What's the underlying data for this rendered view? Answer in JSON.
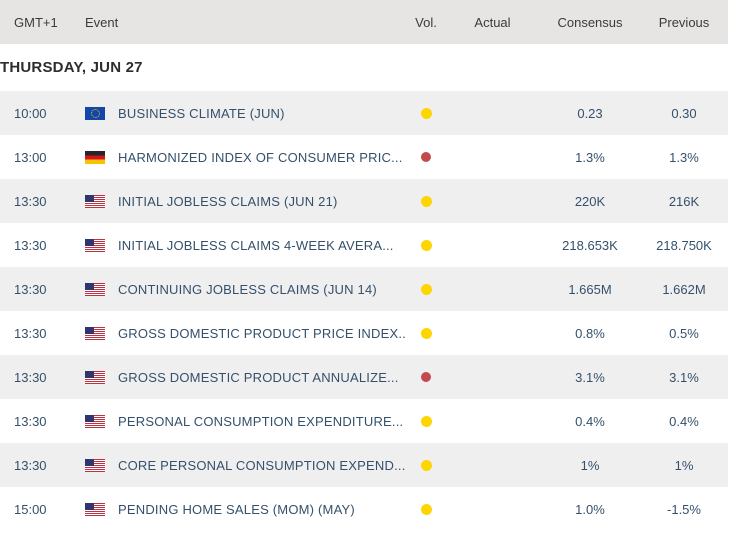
{
  "table": {
    "headers": {
      "time": "GMT+1",
      "event": "Event",
      "vol": "Vol.",
      "actual": "Actual",
      "consensus": "Consensus",
      "previous": "Previous"
    },
    "date_header": "THURSDAY, JUN 27",
    "rows": [
      {
        "time": "10:00",
        "country": "eu",
        "event": "BUSINESS CLIMATE (JUN)",
        "volatility": "yellow",
        "actual": "",
        "consensus": "0.23",
        "previous": "0.30"
      },
      {
        "time": "13:00",
        "country": "de",
        "event": "HARMONIZED INDEX OF CONSUMER PRIC...",
        "volatility": "red",
        "actual": "",
        "consensus": "1.3%",
        "previous": "1.3%"
      },
      {
        "time": "13:30",
        "country": "us",
        "event": "INITIAL JOBLESS CLAIMS (JUN 21)",
        "volatility": "yellow",
        "actual": "",
        "consensus": "220K",
        "previous": "216K"
      },
      {
        "time": "13:30",
        "country": "us",
        "event": "INITIAL JOBLESS CLAIMS 4-WEEK AVERA...",
        "volatility": "yellow",
        "actual": "",
        "consensus": "218.653K",
        "previous": "218.750K"
      },
      {
        "time": "13:30",
        "country": "us",
        "event": "CONTINUING JOBLESS CLAIMS (JUN 14)",
        "volatility": "yellow",
        "actual": "",
        "consensus": "1.665M",
        "previous": "1.662M"
      },
      {
        "time": "13:30",
        "country": "us",
        "event": "GROSS DOMESTIC PRODUCT PRICE INDEX...",
        "volatility": "yellow",
        "actual": "",
        "consensus": "0.8%",
        "previous": "0.5%"
      },
      {
        "time": "13:30",
        "country": "us",
        "event": "GROSS DOMESTIC PRODUCT ANNUALIZE...",
        "volatility": "red",
        "actual": "",
        "consensus": "3.1%",
        "previous": "3.1%"
      },
      {
        "time": "13:30",
        "country": "us",
        "event": "PERSONAL CONSUMPTION EXPENDITURE...",
        "volatility": "yellow",
        "actual": "",
        "consensus": "0.4%",
        "previous": "0.4%"
      },
      {
        "time": "13:30",
        "country": "us",
        "event": "CORE PERSONAL CONSUMPTION EXPEND...",
        "volatility": "yellow",
        "actual": "",
        "consensus": "1%",
        "previous": "1%"
      },
      {
        "time": "15:00",
        "country": "us",
        "event": "PENDING HOME SALES (MOM) (MAY)",
        "volatility": "yellow",
        "actual": "",
        "consensus": "1.0%",
        "previous": "-1.5%"
      }
    ],
    "colors": {
      "header_bg": "#e6e5e3",
      "row_alt": "#efefef",
      "text": "#35506b",
      "volatility_yellow": "#fdd600",
      "volatility_red": "#c4494f"
    }
  }
}
